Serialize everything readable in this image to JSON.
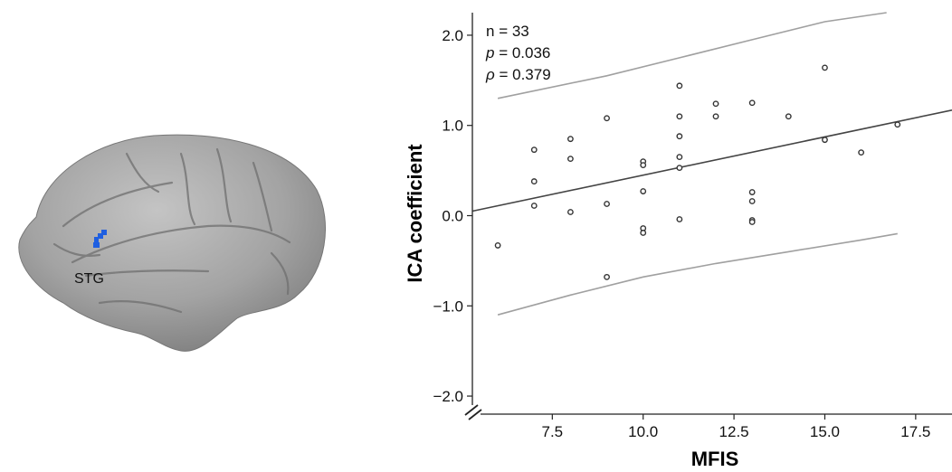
{
  "brain": {
    "region_label": "STG",
    "highlight_color": "#1f5fe0",
    "surface_color": "#9a9a9a"
  },
  "chart_data": {
    "type": "scatter",
    "xlabel": "MFIS",
    "ylabel": "ICA coefficient",
    "xlim": [
      5.3,
      18.5
    ],
    "ylim": [
      -2.2,
      2.25
    ],
    "xticks": [
      7.5,
      10.0,
      12.5,
      15.0,
      17.5
    ],
    "xtick_labels": [
      "7.5",
      "10.0",
      "12.5",
      "15.0",
      "17.5"
    ],
    "yticks": [
      2.0,
      1.0,
      0.0,
      -1.0,
      -2.0
    ],
    "ytick_labels": [
      "2.0",
      "1.0",
      "0.0",
      "−1.0",
      "−2.0"
    ],
    "annotations": {
      "n": {
        "symbol": "n",
        "value": "33"
      },
      "p": {
        "symbol": "p",
        "value": "0.036"
      },
      "rho": {
        "symbol": "ρ",
        "value": "0.379"
      }
    },
    "points": [
      {
        "x": 6,
        "y": -0.33
      },
      {
        "x": 7,
        "y": 0.73
      },
      {
        "x": 7,
        "y": 0.38
      },
      {
        "x": 7,
        "y": 0.11
      },
      {
        "x": 8,
        "y": 0.85
      },
      {
        "x": 8,
        "y": 0.63
      },
      {
        "x": 8,
        "y": 0.04
      },
      {
        "x": 9,
        "y": 1.08
      },
      {
        "x": 9,
        "y": 0.13
      },
      {
        "x": 9,
        "y": -0.68
      },
      {
        "x": 10,
        "y": 0.6
      },
      {
        "x": 10,
        "y": 0.56
      },
      {
        "x": 10,
        "y": 0.27
      },
      {
        "x": 10,
        "y": -0.14
      },
      {
        "x": 10,
        "y": -0.19
      },
      {
        "x": 11,
        "y": 1.44
      },
      {
        "x": 11,
        "y": 1.1
      },
      {
        "x": 11,
        "y": 0.88
      },
      {
        "x": 11,
        "y": 0.65
      },
      {
        "x": 11,
        "y": 0.53
      },
      {
        "x": 11,
        "y": -0.04
      },
      {
        "x": 12,
        "y": 1.24
      },
      {
        "x": 12,
        "y": 1.1
      },
      {
        "x": 13,
        "y": 1.25
      },
      {
        "x": 13,
        "y": 0.26
      },
      {
        "x": 13,
        "y": 0.16
      },
      {
        "x": 13,
        "y": -0.05
      },
      {
        "x": 13,
        "y": -0.07
      },
      {
        "x": 14,
        "y": 1.1
      },
      {
        "x": 15,
        "y": 1.64
      },
      {
        "x": 15,
        "y": 0.84
      },
      {
        "x": 16,
        "y": 0.7
      },
      {
        "x": 17,
        "y": 1.01
      }
    ],
    "fit_line": {
      "x": [
        5.3,
        18.5
      ],
      "y": [
        0.05,
        1.17
      ]
    },
    "ci_upper": {
      "x": [
        6,
        9,
        11,
        13,
        15,
        16.7
      ],
      "y": [
        1.3,
        1.55,
        1.75,
        1.95,
        2.15,
        2.25
      ]
    },
    "ci_lower": {
      "x": [
        6,
        8,
        10,
        12,
        14,
        16,
        17
      ],
      "y": [
        -1.1,
        -0.88,
        -0.68,
        -0.53,
        -0.4,
        -0.27,
        -0.2
      ]
    },
    "colors": {
      "points": "#333333",
      "fit": "#444444",
      "ci": "#a0a0a0",
      "axes": "#222222"
    }
  }
}
